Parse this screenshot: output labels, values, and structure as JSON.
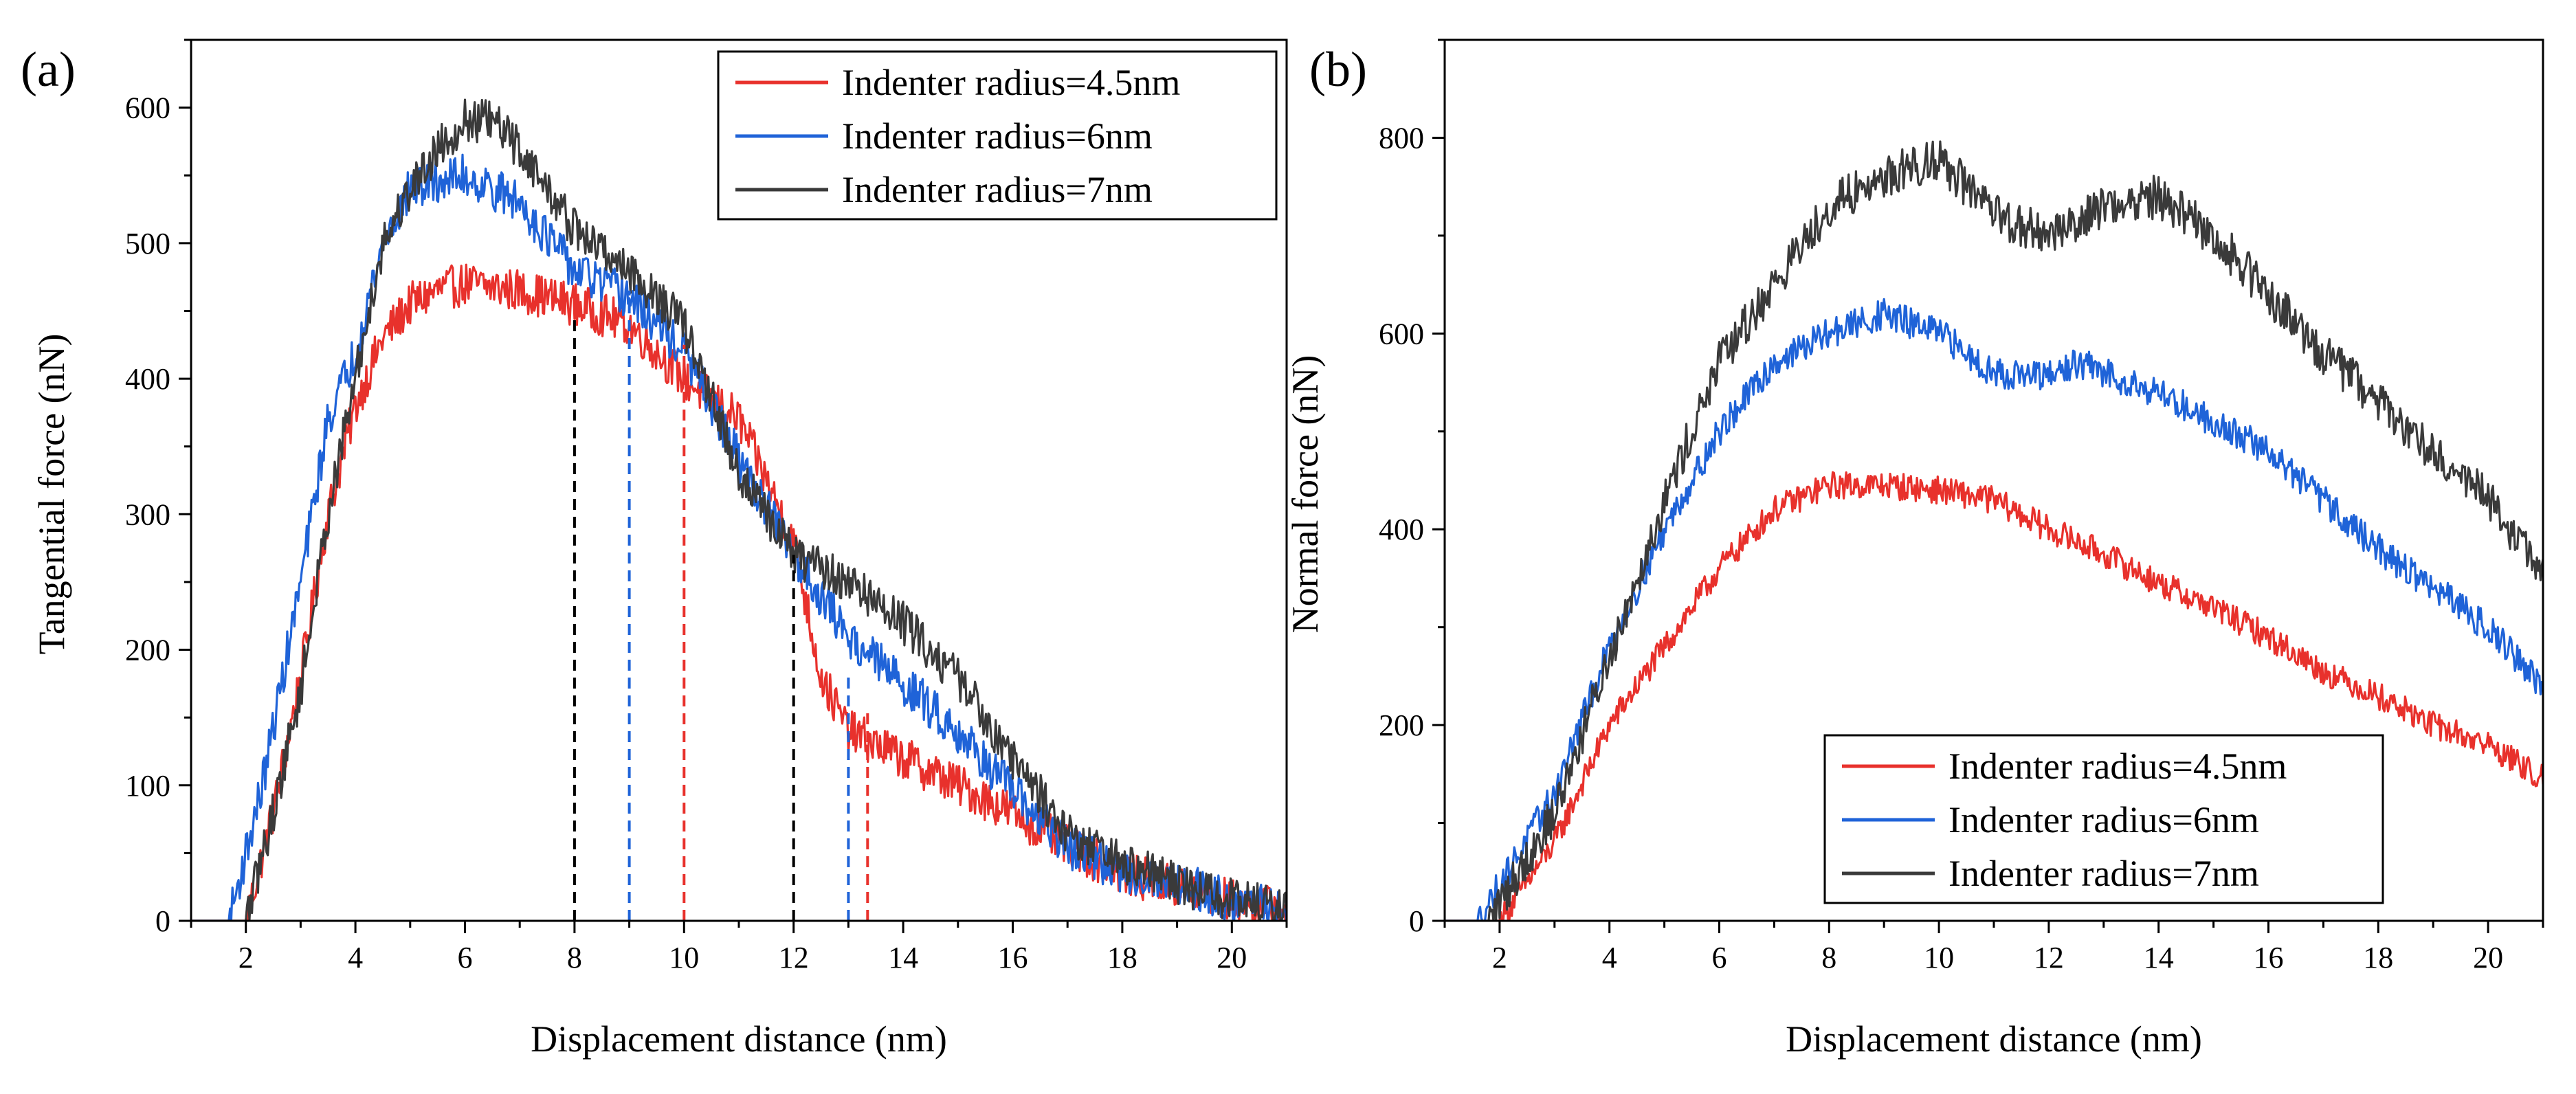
{
  "figure": {
    "colors": {
      "red": "#e8312c",
      "blue": "#1f63d8",
      "black": "#3a3a3a"
    }
  },
  "chart_data": [
    {
      "panel_label": "(a)",
      "type": "line",
      "xlabel": "Displacement distance (nm)",
      "ylabel": "Tangential force (nN)",
      "xlim": [
        1,
        21
      ],
      "ylim": [
        0,
        650
      ],
      "xticks": [
        2,
        4,
        6,
        8,
        10,
        12,
        14,
        16,
        18,
        20
      ],
      "yticks": [
        0,
        100,
        200,
        300,
        400,
        500,
        600
      ],
      "legend_position": "top-right",
      "series": [
        {
          "name": "Indenter radius=4.5nm",
          "color": "#e8312c",
          "noise": 16,
          "x": [
            1,
            2.0,
            2.5,
            3.0,
            3.5,
            4.0,
            4.5,
            5.0,
            5.5,
            6.0,
            7.0,
            8.0,
            9.0,
            10.0,
            11.0,
            12.0,
            12.5,
            13.0,
            14.0,
            15.0,
            16.0,
            17.0,
            18.0,
            19.0,
            20.0,
            21.0
          ],
          "y": [
            0,
            0,
            80,
            180,
            300,
            380,
            430,
            455,
            465,
            470,
            465,
            455,
            440,
            400,
            370,
            280,
            180,
            140,
            120,
            100,
            80,
            55,
            35,
            25,
            15,
            8
          ]
        },
        {
          "name": "Indenter radius=6nm",
          "color": "#1f63d8",
          "noise": 16,
          "x": [
            1,
            1.7,
            2.3,
            3.0,
            3.5,
            4.0,
            4.5,
            5.0,
            6.0,
            7.0,
            8.0,
            9.0,
            10.0,
            11.0,
            12.0,
            13.0,
            14.0,
            15.0,
            16.0,
            17.0,
            18.0,
            19.0,
            20.0,
            21.0
          ],
          "y": [
            0,
            0,
            100,
            250,
            370,
            420,
            500,
            540,
            550,
            530,
            480,
            460,
            420,
            340,
            270,
            210,
            175,
            140,
            95,
            55,
            35,
            28,
            15,
            8
          ]
        },
        {
          "name": "Indenter radius=7nm",
          "color": "#3a3a3a",
          "noise": 16,
          "x": [
            1,
            2.0,
            2.5,
            3.0,
            3.5,
            4.0,
            4.5,
            5.0,
            5.5,
            6.0,
            6.5,
            7.0,
            8.0,
            9.0,
            10.0,
            11.0,
            12.0,
            13.0,
            14.0,
            15.0,
            16.0,
            17.0,
            18.0,
            19.0,
            20.0,
            21.0
          ],
          "y": [
            0,
            0,
            80,
            170,
            300,
            400,
            500,
            540,
            570,
            590,
            590,
            570,
            510,
            480,
            440,
            330,
            270,
            250,
            220,
            180,
            120,
            65,
            42,
            28,
            15,
            8
          ]
        }
      ],
      "reference_lines": [
        {
          "x": 8.0,
          "y_top": 445,
          "color": "#000000"
        },
        {
          "x": 12.0,
          "y_top": 270,
          "color": "#000000"
        },
        {
          "x": 9.0,
          "y_top": 465,
          "color": "#1f63d8"
        },
        {
          "x": 13.0,
          "y_top": 180,
          "color": "#1f63d8"
        },
        {
          "x": 10.0,
          "y_top": 425,
          "color": "#e8312c"
        },
        {
          "x": 13.35,
          "y_top": 155,
          "color": "#e8312c"
        }
      ]
    },
    {
      "panel_label": "(b)",
      "type": "line",
      "xlabel": "Displacement distance (nm)",
      "ylabel": "Normal force (nN)",
      "xlim": [
        1,
        21
      ],
      "ylim": [
        0,
        900
      ],
      "xticks": [
        2,
        4,
        6,
        8,
        10,
        12,
        14,
        16,
        18,
        20
      ],
      "yticks": [
        0,
        200,
        400,
        600,
        800
      ],
      "legend_position": "bottom-right",
      "series": [
        {
          "name": "Indenter radius=4.5nm",
          "color": "#e8312c",
          "noise": 14,
          "x": [
            1,
            2.0,
            3.0,
            4.0,
            5.0,
            6.0,
            7.0,
            8.0,
            9.0,
            10.0,
            11.0,
            12.0,
            13.0,
            14.0,
            15.0,
            16.0,
            17.0,
            18.0,
            19.0,
            20.0,
            21.0
          ],
          "y": [
            0,
            0,
            80,
            200,
            280,
            360,
            420,
            445,
            445,
            440,
            430,
            400,
            375,
            345,
            320,
            290,
            255,
            230,
            200,
            180,
            145
          ]
        },
        {
          "name": "Indenter radius=6nm",
          "color": "#1f63d8",
          "noise": 16,
          "x": [
            1,
            1.6,
            3.0,
            4.0,
            5.0,
            6.0,
            7.0,
            8.0,
            9.0,
            10.0,
            11.0,
            12.0,
            12.5,
            13.0,
            14.0,
            15.0,
            16.0,
            17.0,
            18.0,
            19.0,
            20.0,
            21.0
          ],
          "y": [
            0,
            0,
            130,
            280,
            400,
            500,
            570,
            600,
            620,
            600,
            560,
            555,
            570,
            560,
            540,
            510,
            480,
            430,
            380,
            340,
            300,
            240
          ]
        },
        {
          "name": "Indenter radius=7nm",
          "color": "#3a3a3a",
          "noise": 22,
          "x": [
            1,
            1.8,
            3.0,
            4.0,
            5.0,
            6.0,
            7.0,
            8.0,
            9.0,
            10.0,
            11.0,
            12.0,
            13.0,
            14.0,
            15.0,
            16.0,
            17.0,
            18.0,
            19.0,
            20.0,
            21.0
          ],
          "y": [
            0,
            0,
            110,
            270,
            430,
            570,
            650,
            730,
            760,
            780,
            720,
            700,
            730,
            740,
            700,
            640,
            580,
            530,
            480,
            430,
            355
          ]
        }
      ]
    }
  ]
}
